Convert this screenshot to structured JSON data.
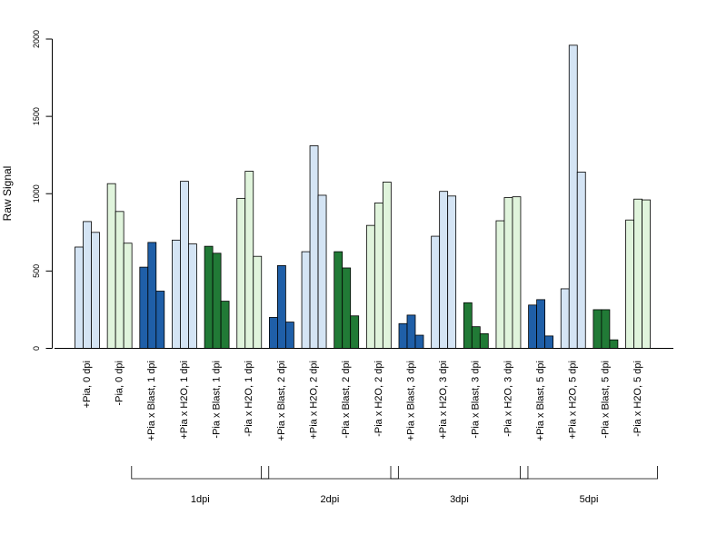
{
  "chart_data": {
    "type": "bar",
    "ylabel": "Raw Signal",
    "xlabel": "",
    "ylim": [
      0,
      2000
    ],
    "yticks": [
      "0",
      "500",
      "1000",
      "1500",
      "2000"
    ],
    "grid": false,
    "categories": [
      "+Pia, 0 dpi",
      "-Pia, 0 dpi",
      "+Pia x Blast, 1 dpi",
      "+Pia x H2O, 1 dpi",
      "-Pia x Blast, 1 dpi",
      "-Pia x H2O, 1 dpi",
      "+Pia x Blast, 2 dpi",
      "+Pia x H2O, 2 dpi",
      "-Pia x Blast, 2 dpi",
      "-Pia x H2O, 2 dpi",
      "+Pia x Blast, 3 dpi",
      "+Pia x H2O, 3 dpi",
      "-Pia x Blast, 3 dpi",
      "-Pia x H2O, 3 dpi",
      "+Pia x Blast, 5 dpi",
      "+Pia x H2O, 5 dpi",
      "-Pia x Blast, 5 dpi",
      "-Pia x H2O, 5 dpi"
    ],
    "category_colors": [
      "#d4e4f4",
      "#e0f4dc",
      "#1f5fa8",
      "#d4e4f4",
      "#217a36",
      "#e0f4dc",
      "#1f5fa8",
      "#d4e4f4",
      "#217a36",
      "#e0f4dc",
      "#1f5fa8",
      "#d4e4f4",
      "#217a36",
      "#e0f4dc",
      "#1f5fa8",
      "#d4e4f4",
      "#217a36",
      "#e0f4dc"
    ],
    "values": [
      [
        655,
        820,
        750
      ],
      [
        1065,
        885,
        680
      ],
      [
        525,
        685,
        370
      ],
      [
        700,
        1080,
        675
      ],
      [
        660,
        615,
        305
      ],
      [
        970,
        1145,
        595
      ],
      [
        200,
        535,
        170
      ],
      [
        625,
        1310,
        990
      ],
      [
        625,
        520,
        210
      ],
      [
        795,
        940,
        1075
      ],
      [
        160,
        215,
        85
      ],
      [
        725,
        1015,
        985
      ],
      [
        295,
        140,
        95
      ],
      [
        825,
        975,
        980
      ],
      [
        280,
        315,
        80
      ],
      [
        385,
        1960,
        1140
      ],
      [
        250,
        250,
        55
      ],
      [
        830,
        965,
        960
      ]
    ],
    "groups": [
      {
        "label": "1dpi",
        "from": 2,
        "to": 5
      },
      {
        "label": "2dpi",
        "from": 6,
        "to": 9
      },
      {
        "label": "3dpi",
        "from": 10,
        "to": 13
      },
      {
        "label": "5dpi",
        "from": 14,
        "to": 17
      }
    ]
  }
}
